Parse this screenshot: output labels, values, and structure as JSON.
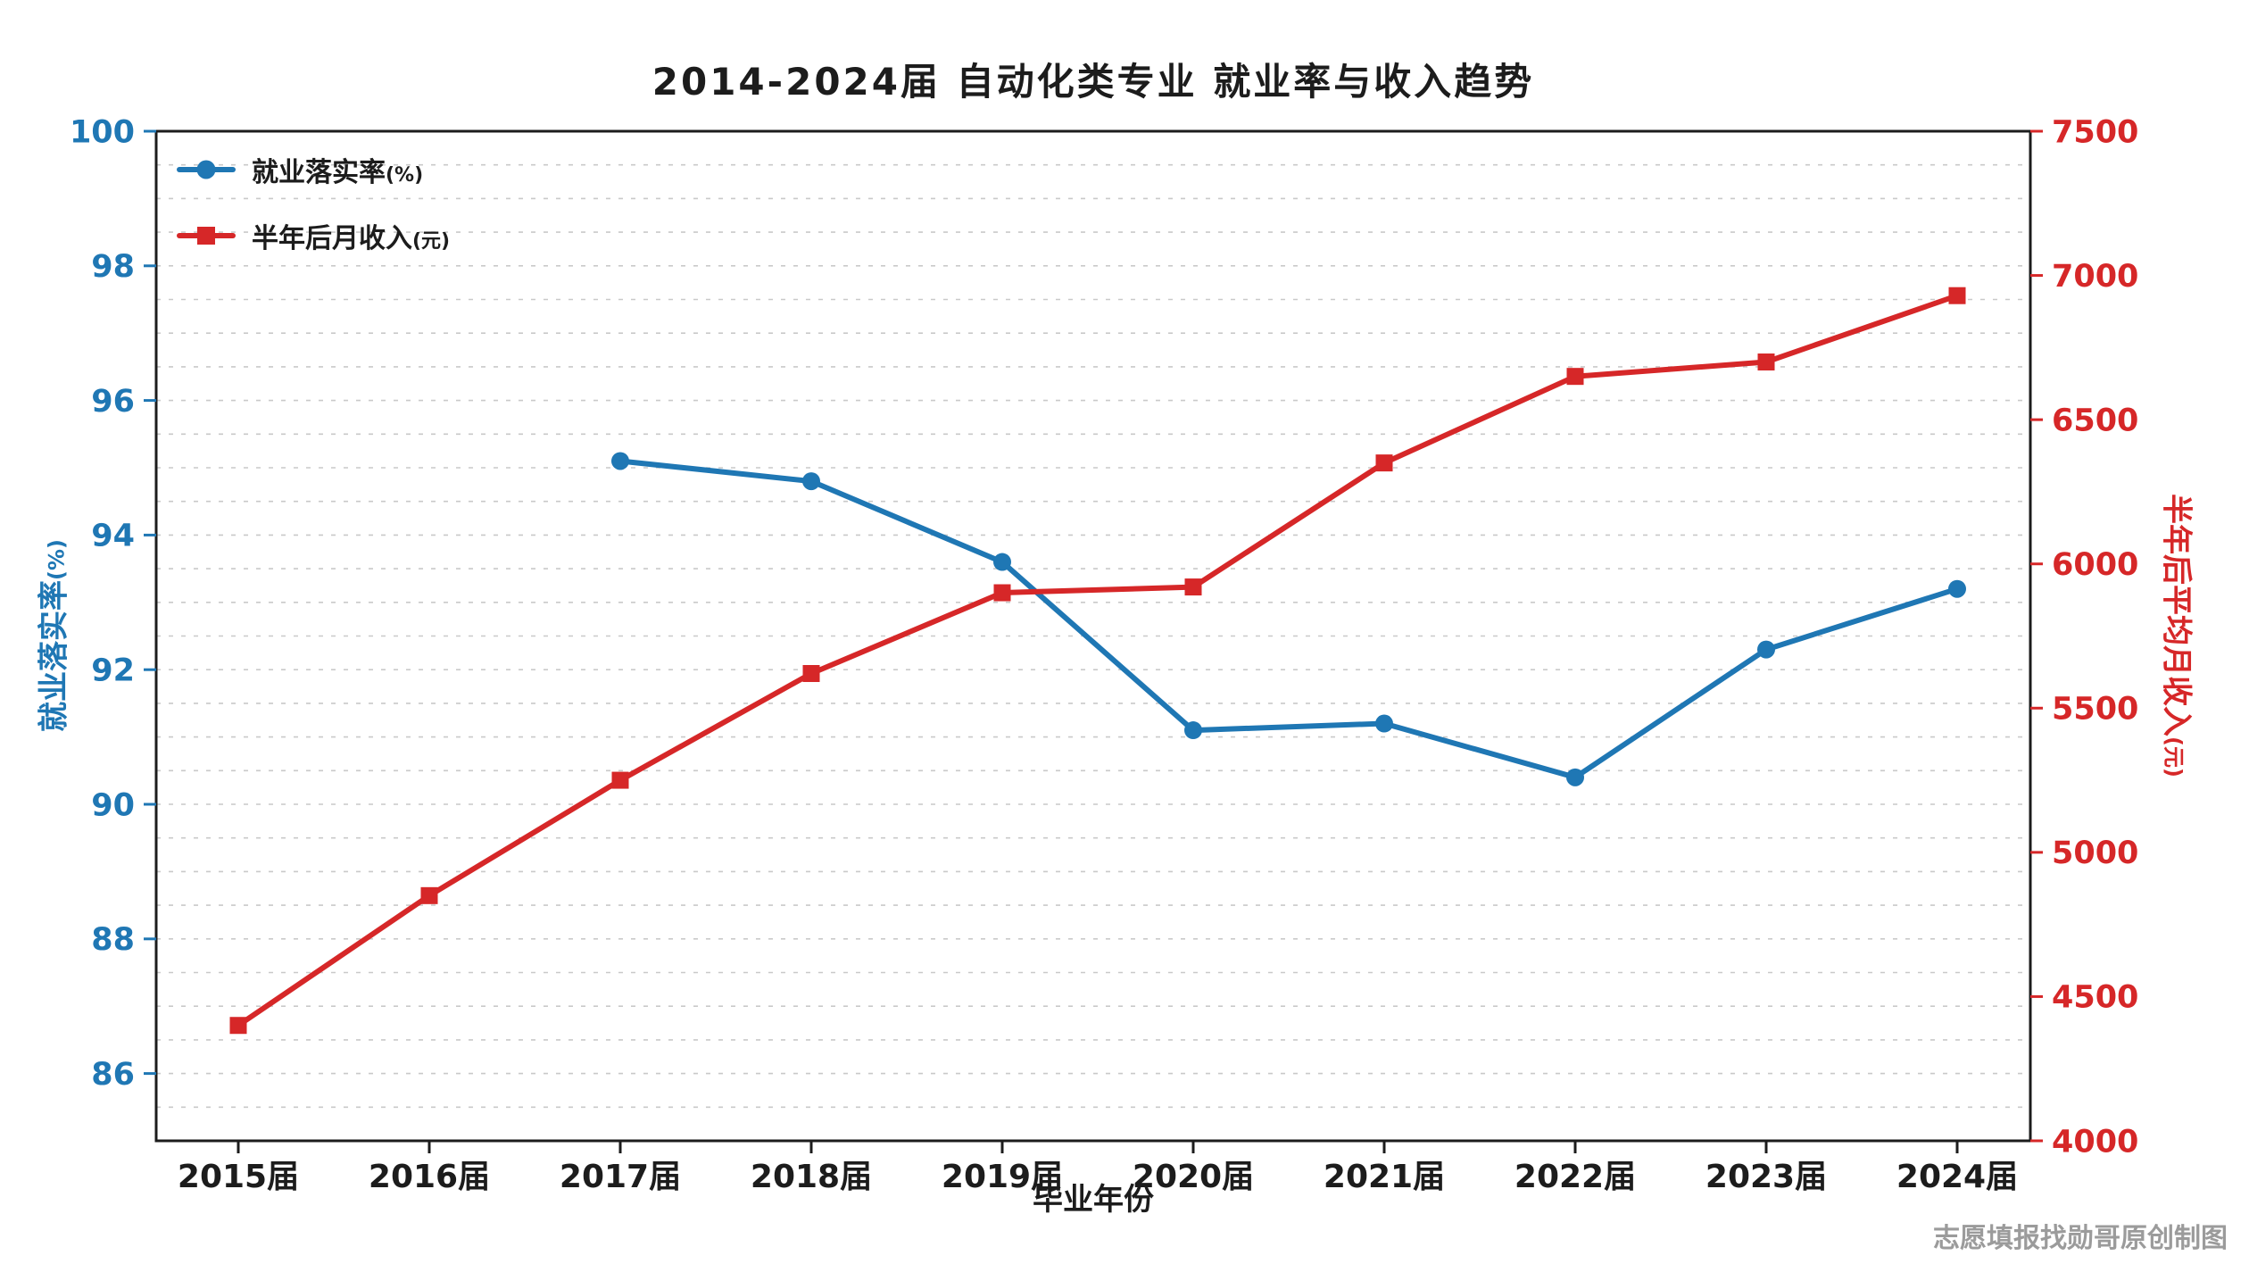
{
  "watermark": "志愿填报找勋哥原创制图",
  "chart_data": {
    "type": "line",
    "title": "2014-2024届 自动化类专业 就业率与收入趋势",
    "xlabel": "毕业年份",
    "categories": [
      "2015届",
      "2016届",
      "2017届",
      "2018届",
      "2019届",
      "2020届",
      "2021届",
      "2022届",
      "2023届",
      "2024届"
    ],
    "series": [
      {
        "id": "employment_rate",
        "name": "就业落实率",
        "unit": "(%)",
        "axis": "left",
        "color": "#1f77b4",
        "marker": "circle",
        "values": [
          null,
          null,
          95.1,
          94.8,
          93.6,
          91.1,
          91.2,
          90.4,
          92.3,
          93.2
        ]
      },
      {
        "id": "income",
        "name": "半年后月收入",
        "unit": "(元)",
        "axis": "right",
        "color": "#d62728",
        "marker": "square",
        "values": [
          4400,
          4850,
          5250,
          5620,
          5900,
          5920,
          6350,
          6650,
          6700,
          6930
        ]
      }
    ],
    "left_axis": {
      "label": "就业落实率",
      "unit": "(%)",
      "min": 85,
      "max": 100,
      "ticks": [
        86,
        88,
        90,
        92,
        94,
        96,
        98,
        100
      ],
      "color": "#1f77b4"
    },
    "right_axis": {
      "label": "半年后平均月收入",
      "unit": "(元)",
      "min": 4000,
      "max": 7500,
      "ticks": [
        4000,
        4500,
        5000,
        5500,
        6000,
        6500,
        7000,
        7500
      ],
      "color": "#d62728"
    },
    "grid": {
      "on": true,
      "axis": "y",
      "minor_step": 0.5,
      "style": "dashed",
      "color": "#c9c9c9"
    },
    "legend": {
      "position": "upper-left",
      "frame": false
    }
  }
}
